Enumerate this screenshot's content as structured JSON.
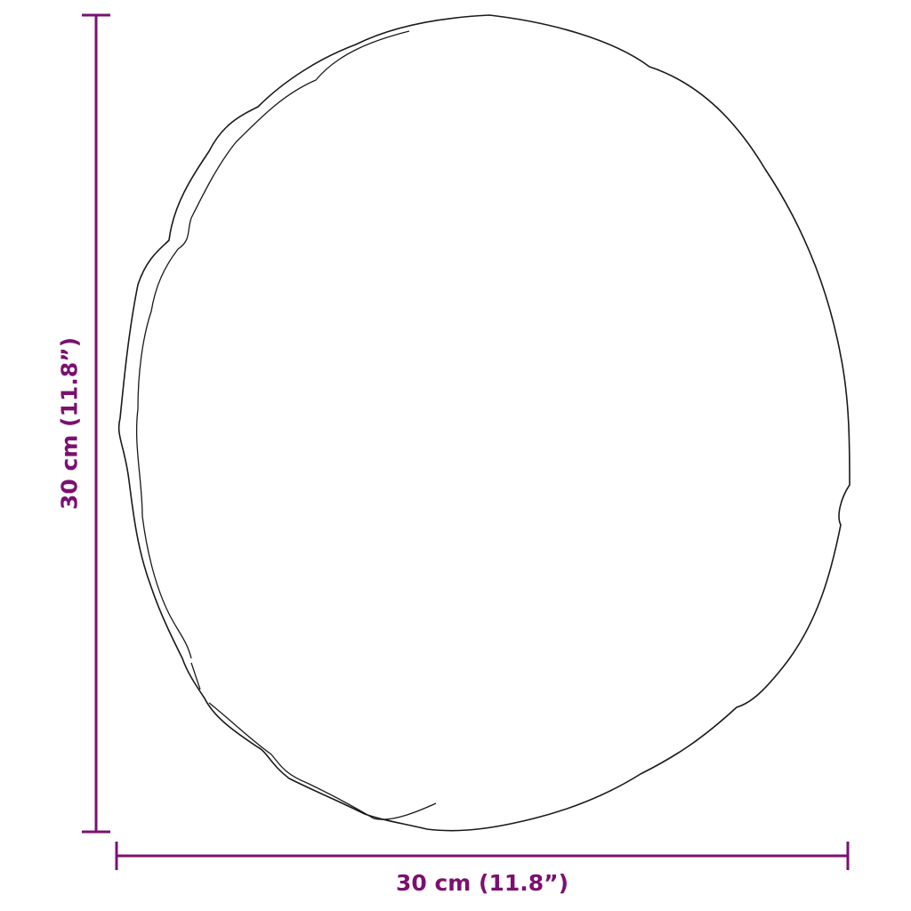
{
  "dimensions": {
    "width_label": "30 cm (11.8”)",
    "height_label": "30 cm (11.8”)"
  },
  "colors": {
    "dimension_line": "#7b1070",
    "outline": "#1a1a1a"
  },
  "object": "round-mirror-outline"
}
